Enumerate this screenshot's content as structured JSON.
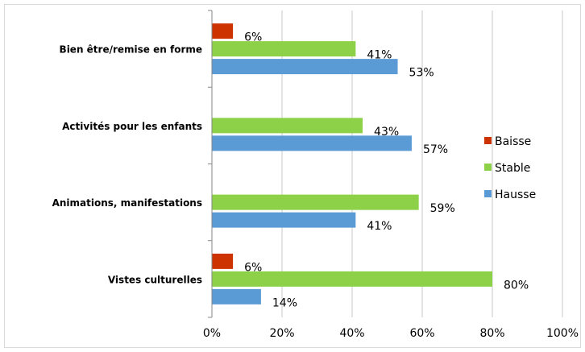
{
  "chart_data": {
    "type": "bar",
    "orientation": "horizontal",
    "categories": [
      "Bien être/remise en forme",
      "Activités pour les enfants",
      "Animations, manifestations",
      "Vistes culturelles"
    ],
    "series": [
      {
        "name": "Baisse",
        "color": "#cc3300",
        "values": [
          6,
          null,
          null,
          6
        ],
        "labels": [
          "6%",
          "",
          "",
          "6%"
        ]
      },
      {
        "name": "Stable",
        "color": "#8cd147",
        "values": [
          41,
          43,
          59,
          80
        ],
        "labels": [
          "41%",
          "43%",
          "59%",
          "80%"
        ]
      },
      {
        "name": "Hausse",
        "color": "#5b9bd5",
        "values": [
          53,
          57,
          41,
          14
        ],
        "labels": [
          "53%",
          "57%",
          "41%",
          "14%"
        ]
      }
    ],
    "xlim": [
      0,
      100
    ],
    "xticks": [
      0,
      20,
      40,
      60,
      80,
      100
    ],
    "xtick_labels": [
      "0%",
      "20%",
      "40%",
      "60%",
      "80%",
      "100%"
    ],
    "grid": true,
    "legend_position": "right",
    "title": "",
    "xlabel": "",
    "ylabel": ""
  }
}
